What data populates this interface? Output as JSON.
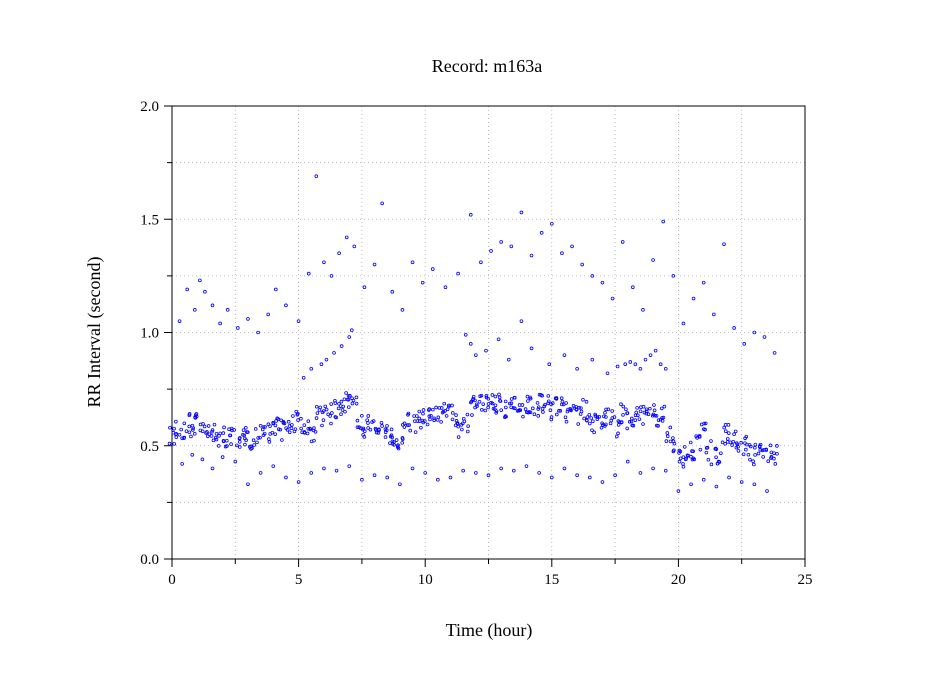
{
  "chart_data": {
    "type": "scatter",
    "title": "Record:  m163a",
    "xlabel": "Time (hour)",
    "ylabel": "RR Interval (second)",
    "xlim": [
      0,
      25
    ],
    "ylim": [
      0.0,
      2.0
    ],
    "xticks": [
      0,
      5,
      10,
      15,
      20,
      25
    ],
    "xtick_labels": [
      "0",
      "5",
      "10",
      "15",
      "20",
      "25"
    ],
    "yticks": [
      0.0,
      0.5,
      1.0,
      1.5,
      2.0
    ],
    "ytick_labels": [
      "0.0",
      "0.5",
      "1.0",
      "1.5",
      "2.0"
    ],
    "grid": true,
    "marker_color": "#0000ff",
    "series": [
      {
        "x": [
          0.0,
          0.2,
          0.4,
          0.6,
          0.8,
          1.0,
          1.2,
          1.4,
          1.6,
          1.8,
          2.0,
          2.2,
          2.4,
          2.6,
          2.8,
          3.0,
          3.2,
          3.4,
          3.6,
          3.8,
          4.0,
          4.2,
          4.4,
          4.6,
          4.8,
          5.0,
          5.2,
          5.4,
          5.6,
          5.8,
          6.0,
          6.2,
          6.4,
          6.6,
          6.8,
          7.0,
          7.2,
          7.4,
          7.6,
          7.8,
          8.0,
          8.2,
          8.4,
          8.6,
          8.8,
          9.0,
          9.2,
          9.4,
          9.6,
          9.8,
          10.0,
          10.2,
          10.4,
          10.6,
          10.8,
          11.0,
          11.2,
          11.4,
          11.6,
          11.8,
          12.0,
          12.2,
          12.4,
          12.6,
          12.8,
          13.0,
          13.2,
          13.4,
          13.6,
          13.8,
          14.0,
          14.2,
          14.4,
          14.6,
          14.8,
          15.0,
          15.2,
          15.4,
          15.6,
          15.8,
          16.0,
          16.2,
          16.4,
          16.6,
          16.8,
          17.0,
          17.2,
          17.4,
          17.6,
          17.8,
          18.0,
          18.2,
          18.4,
          18.6,
          18.8,
          19.0,
          19.2,
          19.4,
          19.6,
          19.8,
          20.0,
          20.2,
          20.4,
          20.6,
          20.8,
          21.0,
          21.2,
          21.4,
          21.6,
          21.8,
          22.0,
          22.2,
          22.4,
          22.6,
          22.8,
          23.0,
          23.2,
          23.4,
          23.6,
          23.8
        ],
        "y": [
          0.55,
          0.58,
          0.56,
          0.6,
          0.57,
          0.62,
          0.6,
          0.58,
          0.55,
          0.54,
          0.56,
          0.53,
          0.55,
          0.52,
          0.53,
          0.54,
          0.52,
          0.55,
          0.57,
          0.56,
          0.58,
          0.6,
          0.57,
          0.59,
          0.6,
          0.61,
          0.6,
          0.58,
          0.56,
          0.65,
          0.63,
          0.64,
          0.66,
          0.67,
          0.69,
          0.71,
          0.68,
          0.6,
          0.57,
          0.59,
          0.6,
          0.58,
          0.56,
          0.55,
          0.53,
          0.5,
          0.57,
          0.6,
          0.59,
          0.61,
          0.62,
          0.63,
          0.64,
          0.63,
          0.65,
          0.64,
          0.62,
          0.56,
          0.6,
          0.67,
          0.69,
          0.68,
          0.7,
          0.69,
          0.68,
          0.69,
          0.67,
          0.7,
          0.68,
          0.66,
          0.69,
          0.68,
          0.67,
          0.69,
          0.68,
          0.66,
          0.68,
          0.67,
          0.65,
          0.66,
          0.64,
          0.66,
          0.65,
          0.6,
          0.64,
          0.6,
          0.62,
          0.63,
          0.58,
          0.64,
          0.62,
          0.6,
          0.64,
          0.63,
          0.65,
          0.66,
          0.63,
          0.64,
          0.56,
          0.52,
          0.44,
          0.45,
          0.47,
          0.44,
          0.5,
          0.56,
          0.48,
          0.45,
          0.46,
          0.55,
          0.56,
          0.52,
          0.48,
          0.5,
          0.47,
          0.46,
          0.48,
          0.45,
          0.47,
          0.46
        ]
      },
      {
        "x": [
          0.3,
          0.6,
          0.9,
          1.1,
          1.3,
          1.6,
          1.9,
          2.2,
          2.6,
          3.0,
          3.4,
          3.8,
          4.1,
          4.5,
          5.0,
          5.4,
          5.7,
          6.0,
          6.3,
          6.6,
          6.9,
          7.2,
          7.6,
          8.0,
          8.3,
          8.7,
          9.1,
          9.5,
          9.9,
          10.3,
          10.8,
          11.3,
          11.8,
          12.2,
          12.6,
          13.0,
          13.4,
          13.8,
          14.2,
          14.6,
          15.0,
          15.4,
          15.8,
          16.2,
          16.6,
          17.0,
          17.4,
          17.8,
          18.2,
          18.6,
          19.0,
          19.4,
          19.8,
          20.2,
          20.6,
          21.0,
          21.4,
          21.8,
          22.2,
          22.6,
          23.0,
          23.4,
          23.8
        ],
        "y": [
          1.05,
          1.19,
          1.1,
          1.23,
          1.18,
          1.12,
          1.04,
          1.1,
          1.02,
          1.06,
          1.0,
          1.08,
          1.19,
          1.12,
          1.05,
          1.26,
          1.69,
          1.31,
          1.25,
          1.35,
          1.42,
          1.38,
          1.2,
          1.3,
          1.57,
          1.18,
          1.1,
          1.31,
          1.22,
          1.28,
          1.2,
          1.26,
          1.52,
          1.31,
          1.36,
          1.4,
          1.38,
          1.53,
          1.34,
          1.44,
          1.48,
          1.35,
          1.38,
          1.3,
          1.25,
          1.22,
          1.15,
          1.4,
          1.2,
          1.1,
          1.32,
          1.49,
          1.25,
          1.04,
          1.15,
          1.22,
          1.08,
          1.39,
          1.02,
          0.95,
          1.0,
          0.98,
          0.91
        ]
      },
      {
        "x": [
          0.4,
          0.8,
          1.2,
          1.6,
          2.0,
          2.5,
          3.0,
          3.5,
          4.0,
          4.5,
          5.0,
          5.5,
          6.0,
          6.5,
          7.0,
          7.5,
          8.0,
          8.5,
          9.0,
          9.5,
          10.0,
          10.5,
          11.0,
          11.5,
          12.0,
          12.5,
          13.0,
          13.5,
          14.0,
          14.5,
          15.0,
          15.5,
          16.0,
          16.5,
          17.0,
          17.5,
          18.0,
          18.5,
          19.0,
          19.5,
          20.0,
          20.5,
          21.0,
          21.5,
          22.0,
          22.5,
          23.0,
          23.5
        ],
        "y": [
          0.42,
          0.46,
          0.44,
          0.4,
          0.45,
          0.43,
          0.33,
          0.38,
          0.41,
          0.36,
          0.34,
          0.38,
          0.4,
          0.39,
          0.41,
          0.35,
          0.37,
          0.36,
          0.33,
          0.4,
          0.38,
          0.35,
          0.36,
          0.39,
          0.38,
          0.37,
          0.4,
          0.39,
          0.41,
          0.38,
          0.36,
          0.4,
          0.37,
          0.36,
          0.34,
          0.37,
          0.43,
          0.38,
          0.4,
          0.39,
          0.3,
          0.33,
          0.35,
          0.32,
          0.36,
          0.34,
          0.33,
          0.3
        ]
      },
      {
        "x": [
          5.2,
          5.5,
          5.9,
          6.1,
          6.4,
          6.7,
          7.0,
          7.1,
          11.6,
          11.8,
          12.0,
          12.4,
          12.9,
          13.3,
          13.8,
          14.2,
          14.9,
          15.5,
          16.0,
          16.6,
          17.2,
          17.6,
          17.9,
          18.1,
          18.3,
          18.5,
          18.7,
          18.9,
          19.1,
          19.3,
          19.5
        ],
        "y": [
          0.8,
          0.84,
          0.86,
          0.88,
          0.91,
          0.94,
          0.98,
          1.01,
          0.99,
          0.95,
          0.9,
          0.92,
          0.97,
          0.88,
          1.05,
          0.93,
          0.86,
          0.9,
          0.84,
          0.88,
          0.82,
          0.85,
          0.86,
          0.87,
          0.86,
          0.84,
          0.88,
          0.9,
          0.92,
          0.86,
          0.84
        ]
      }
    ]
  }
}
